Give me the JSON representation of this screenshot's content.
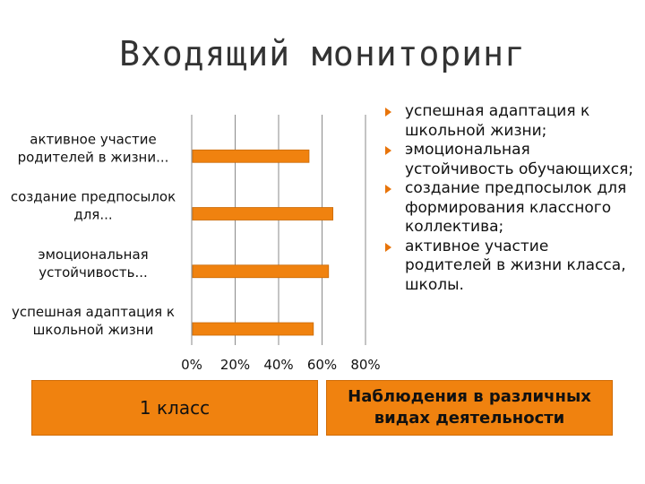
{
  "title": "Входящий мониторинг",
  "chart_data": {
    "type": "bar",
    "orientation": "horizontal",
    "categories": [
      "успешная адаптация к школьной жизни",
      "эмоциональная устойчивость...",
      "создание предпосылок для...",
      "активное участие родителей в жизни..."
    ],
    "values": [
      56,
      63,
      65,
      54
    ],
    "xlim": [
      0,
      80
    ],
    "x_ticks": [
      "0%",
      "20%",
      "40%",
      "60%",
      "80%"
    ],
    "bar_color": "#f0820f",
    "grid": true
  },
  "bullets": [
    "успешная адаптация к школьной жизни;",
    "эмоциональная устойчивость обучающихся;",
    "создание предпосылок для формирования классного коллектива;",
    "активное участие родителей в жизни класса, школы."
  ],
  "box_left": "1 класс",
  "box_right": "Наблюдения в различных видах деятельности",
  "accent_color": "#f0820f"
}
